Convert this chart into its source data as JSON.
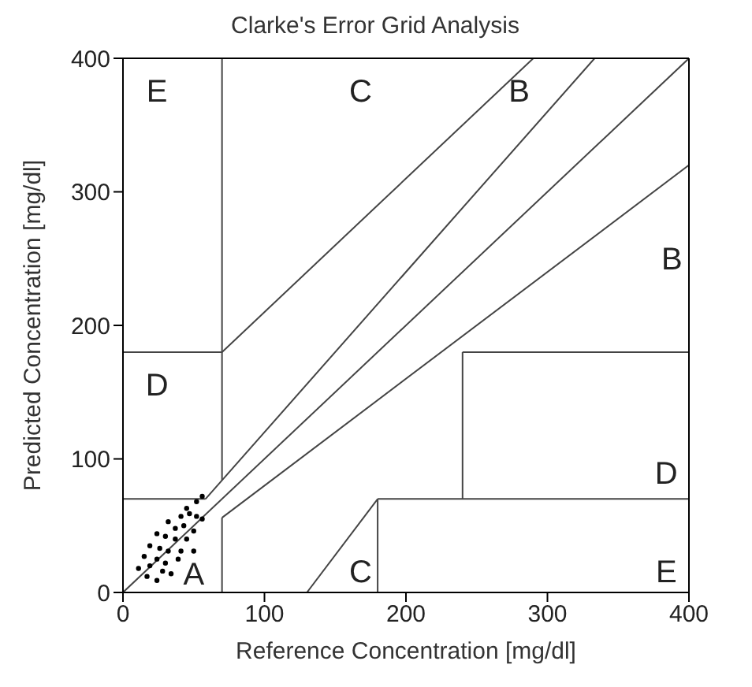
{
  "chart_data": {
    "type": "scatter",
    "title": "Clarke's Error Grid Analysis",
    "xlabel": "Reference Concentration [mg/dl]",
    "ylabel": "Predicted Concentration [mg/dl]",
    "xlim": [
      0,
      400
    ],
    "ylim": [
      0,
      400
    ],
    "xticks": [
      0,
      100,
      200,
      300,
      400
    ],
    "yticks": [
      0,
      100,
      200,
      300,
      400
    ],
    "line_style": "solid",
    "series": [
      {
        "marker": "circle",
        "color": "#000000",
        "x": [
          56,
          52,
          45,
          47,
          41,
          52,
          56,
          32,
          37,
          43,
          50,
          24,
          30,
          37,
          45,
          19,
          26,
          32,
          41,
          50,
          15,
          24,
          30,
          39,
          19,
          11,
          28,
          34,
          17,
          24
        ],
        "values": [
          72,
          68,
          63,
          59,
          57,
          57,
          55,
          53,
          48,
          50,
          46,
          44,
          42,
          40,
          40,
          35,
          33,
          31,
          31,
          31,
          27,
          25,
          22,
          25,
          20,
          18,
          16,
          14,
          12,
          9
        ]
      },
      {
        "type": "line",
        "color": "#444444",
        "x": [
          0,
          400
        ],
        "values": [
          0,
          400
        ]
      },
      {
        "type": "line",
        "color": "#444444",
        "x": [
          0,
          58.33
        ],
        "values": [
          70,
          70
        ]
      },
      {
        "type": "line",
        "color": "#444444",
        "x": [
          58.33,
          333.33
        ],
        "values": [
          70,
          400
        ]
      },
      {
        "type": "line",
        "color": "#444444",
        "x": [
          70,
          70
        ],
        "values": [
          0,
          56
        ]
      },
      {
        "type": "line",
        "color": "#444444",
        "x": [
          70,
          400
        ],
        "values": [
          56,
          320
        ]
      },
      {
        "type": "line",
        "color": "#444444",
        "x": [
          70,
          70
        ],
        "values": [
          84,
          400
        ]
      },
      {
        "type": "line",
        "color": "#444444",
        "x": [
          0,
          70
        ],
        "values": [
          180,
          180
        ]
      },
      {
        "type": "line",
        "color": "#444444",
        "x": [
          70,
          290
        ],
        "values": [
          180,
          400
        ]
      },
      {
        "type": "line",
        "color": "#444444",
        "x": [
          130,
          180
        ],
        "values": [
          0,
          70
        ]
      },
      {
        "type": "line",
        "color": "#444444",
        "x": [
          180,
          180
        ],
        "values": [
          0,
          70
        ]
      },
      {
        "type": "line",
        "color": "#444444",
        "x": [
          180,
          400
        ],
        "values": [
          70,
          70
        ]
      },
      {
        "type": "line",
        "color": "#444444",
        "x": [
          240,
          240
        ],
        "values": [
          70,
          180
        ]
      },
      {
        "type": "line",
        "color": "#444444",
        "x": [
          240,
          400
        ],
        "values": [
          180,
          180
        ]
      }
    ],
    "annotations": [
      "E",
      "C",
      "B",
      "B",
      "D",
      "D",
      "A",
      "C",
      "E"
    ]
  }
}
